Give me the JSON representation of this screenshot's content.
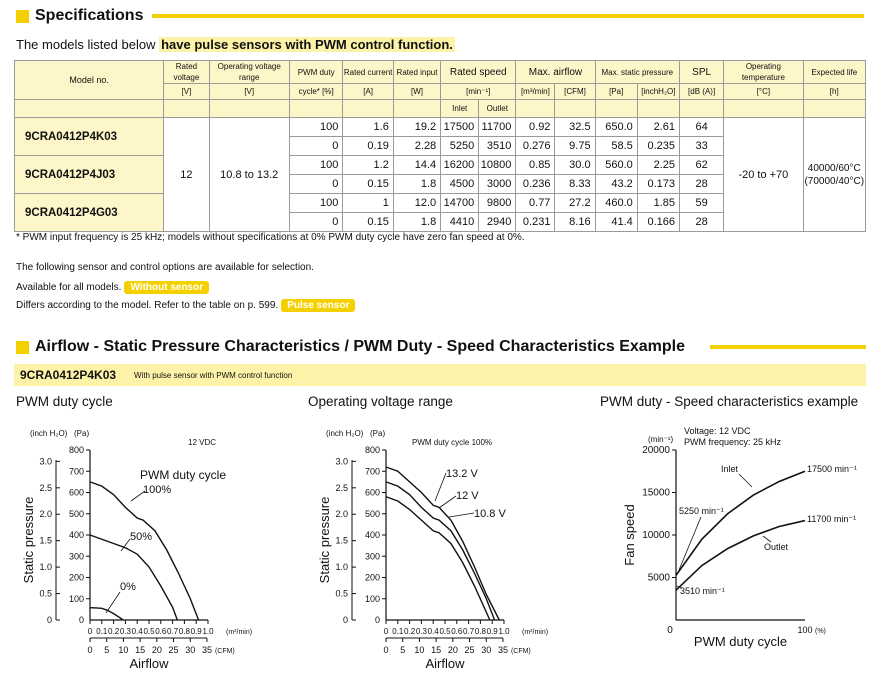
{
  "spec": {
    "title": "Specifications",
    "intro_prefix": "The models listed below",
    "intro_highlight": "have pulse sensors with PWM control function.",
    "headers": {
      "model": "Model no.",
      "rated_voltage": "Rated voltage",
      "rated_voltage_unit": "[V]",
      "op_voltage": "Operating voltage range",
      "op_voltage_unit": "[V]",
      "pwm": "PWM duty",
      "pwm_unit": "cycle* [%]",
      "current": "Rated current",
      "current_unit": "[A]",
      "input": "Rated input",
      "input_unit": "[W]",
      "speed": "Rated speed",
      "speed_unit": "[min⁻¹]",
      "inlet": "Inlet",
      "outlet": "Outlet",
      "airflow": "Max. airflow",
      "airflow_unit1": "[m³/min]",
      "airflow_unit2": "[CFM]",
      "pressure": "Max. static pressure",
      "pressure_unit1": "[Pa]",
      "pressure_unit2": "[inchH₂O]",
      "spl": "SPL",
      "spl_unit": "[dB (A)]",
      "temp": "Operating temperature",
      "temp_unit": "[°C]",
      "life": "Expected life",
      "life_unit": "[h]"
    },
    "models": [
      "9CRA0412P4K03",
      "9CRA0412P4J03",
      "9CRA0412P4G03"
    ],
    "rated_voltage": "12",
    "op_voltage": "10.8 to 13.2",
    "op_temp": "-20 to +70",
    "life_1": "40000/60°C",
    "life_2": "(70000/40°C)",
    "rows": [
      [
        "100",
        "1.6",
        "19.2",
        "17500",
        "11700",
        "0.92",
        "32.5",
        "650.0",
        "2.61",
        "64"
      ],
      [
        "0",
        "0.19",
        "2.28",
        "5250",
        "3510",
        "0.276",
        "9.75",
        "58.5",
        "0.235",
        "33"
      ],
      [
        "100",
        "1.2",
        "14.4",
        "16200",
        "10800",
        "0.85",
        "30.0",
        "560.0",
        "2.25",
        "62"
      ],
      [
        "0",
        "0.15",
        "1.8",
        "4500",
        "3000",
        "0.236",
        "8.33",
        "43.2",
        "0.173",
        "28"
      ],
      [
        "100",
        "1",
        "12.0",
        "14700",
        "9800",
        "0.77",
        "27.2",
        "460.0",
        "1.85",
        "59"
      ],
      [
        "0",
        "0.15",
        "1.8",
        "4410",
        "2940",
        "0.231",
        "8.16",
        "41.4",
        "0.166",
        "28"
      ]
    ],
    "footnote": "* PWM input frequency is 25 kHz; models without specifications at 0% PWM duty cycle have zero fan speed at 0%.",
    "options_line": "The following sensor and control options are available for selection.",
    "avail_line": "Available for all models.",
    "avail_badge": "Without sensor",
    "differs_line": "Differs according to the model. Refer to the table on p. 599.",
    "differs_badge": "Pulse sensor"
  },
  "airflow": {
    "title": "Airflow - Static Pressure Characteristics / PWM Duty - Speed Characteristics Example",
    "model": "9CRA0412P4K03",
    "model_desc": "With pulse sensor with PWM control function"
  },
  "chart_data": [
    {
      "type": "line",
      "title": "PWM duty cycle",
      "xlabel": "Airflow",
      "ylabel": "Static pressure",
      "x_unit1": "(m³/min)",
      "x_unit2": "(CFM)",
      "y_unit1": "(inch H₂O)",
      "y_unit2": "(Pa)",
      "corner_note": "12 VDC",
      "legend_title": "PWM duty cycle",
      "xlim": [
        0,
        1.0
      ],
      "ylim": [
        0,
        800
      ],
      "x_ticks_m3": [
        "0",
        "0.1",
        "0.2",
        "0.3",
        "0.4",
        "0.5",
        "0.6",
        "0.7",
        "0.8",
        "0.9",
        "1.0"
      ],
      "x_ticks_cfm": [
        "0",
        "5",
        "10",
        "15",
        "20",
        "25",
        "30",
        "35"
      ],
      "y_ticks_pa": [
        "800",
        "700",
        "600",
        "500",
        "400",
        "300",
        "200",
        "100",
        "0"
      ],
      "y_ticks_inch": [
        "3.0",
        "2.5",
        "2.0",
        "1.5",
        "1.0",
        "0.5",
        "0"
      ],
      "series": [
        {
          "name": "100%",
          "x": [
            0,
            0.1,
            0.2,
            0.3,
            0.4,
            0.45,
            0.55,
            0.65,
            0.75,
            0.85,
            0.92
          ],
          "y": [
            650,
            630,
            590,
            530,
            480,
            470,
            420,
            330,
            220,
            100,
            0
          ]
        },
        {
          "name": "50%",
          "x": [
            0,
            0.1,
            0.2,
            0.3,
            0.4,
            0.5,
            0.6,
            0.7,
            0.74
          ],
          "y": [
            400,
            380,
            360,
            340,
            310,
            250,
            160,
            60,
            0
          ]
        },
        {
          "name": "0%",
          "x": [
            0,
            0.05,
            0.1,
            0.15,
            0.2,
            0.25,
            0.28
          ],
          "y": [
            58,
            57,
            55,
            45,
            30,
            12,
            0
          ]
        }
      ]
    },
    {
      "type": "line",
      "title": "Operating voltage range",
      "xlabel": "Airflow",
      "ylabel": "Static pressure",
      "x_unit1": "(m³/min)",
      "x_unit2": "(CFM)",
      "y_unit1": "(inch H₂O)",
      "y_unit2": "(Pa)",
      "corner_note": "PWM duty cycle 100%",
      "xlim": [
        0,
        1.0
      ],
      "ylim": [
        0,
        800
      ],
      "x_ticks_m3": [
        "0",
        "0.1",
        "0.2",
        "0.3",
        "0.4",
        "0.5",
        "0.6",
        "0.7",
        "0.8",
        "0.9",
        "1.0"
      ],
      "x_ticks_cfm": [
        "0",
        "5",
        "10",
        "15",
        "20",
        "25",
        "30",
        "35"
      ],
      "y_ticks_pa": [
        "800",
        "700",
        "600",
        "500",
        "400",
        "300",
        "200",
        "100",
        "0"
      ],
      "y_ticks_inch": [
        "3.0",
        "2.5",
        "2.0",
        "1.5",
        "1.0",
        "0.5",
        "0"
      ],
      "series": [
        {
          "name": "13.2 V",
          "x": [
            0,
            0.1,
            0.2,
            0.3,
            0.4,
            0.45,
            0.55,
            0.65,
            0.75,
            0.85,
            0.96
          ],
          "y": [
            720,
            700,
            650,
            600,
            540,
            530,
            470,
            370,
            250,
            120,
            0
          ]
        },
        {
          "name": "12 V",
          "x": [
            0,
            0.1,
            0.2,
            0.3,
            0.4,
            0.45,
            0.55,
            0.65,
            0.75,
            0.85,
            0.92
          ],
          "y": [
            650,
            630,
            590,
            530,
            480,
            470,
            420,
            330,
            220,
            100,
            0
          ]
        },
        {
          "name": "10.8 V",
          "x": [
            0,
            0.1,
            0.2,
            0.3,
            0.4,
            0.45,
            0.55,
            0.65,
            0.75,
            0.88
          ],
          "y": [
            580,
            560,
            520,
            470,
            420,
            410,
            360,
            270,
            160,
            0
          ]
        }
      ]
    },
    {
      "type": "line",
      "title": "PWM duty - Speed characteristics example",
      "xlabel": "PWM duty cycle",
      "ylabel": "Fan speed",
      "y_unit": "(min⁻¹)",
      "x_unit": "(%)",
      "note_1": "Voltage: 12 VDC",
      "note_2": "PWM frequency: 25 kHz",
      "xlim": [
        0,
        100
      ],
      "ylim": [
        0,
        20000
      ],
      "x_ticks": [
        "0",
        "100"
      ],
      "y_ticks": [
        "20000",
        "15000",
        "10000",
        "5000"
      ],
      "series": [
        {
          "name": "Inlet",
          "x": [
            0,
            20,
            40,
            60,
            80,
            100
          ],
          "y": [
            5250,
            9500,
            12500,
            14700,
            16300,
            17500
          ]
        },
        {
          "name": "Outlet",
          "x": [
            0,
            20,
            40,
            60,
            80,
            100
          ],
          "y": [
            3510,
            6400,
            8400,
            9900,
            11000,
            11700
          ]
        }
      ],
      "annotations": [
        "17500 min⁻¹",
        "11700 min⁻¹",
        "5250 min⁻¹",
        "3510 min⁻¹"
      ]
    }
  ]
}
